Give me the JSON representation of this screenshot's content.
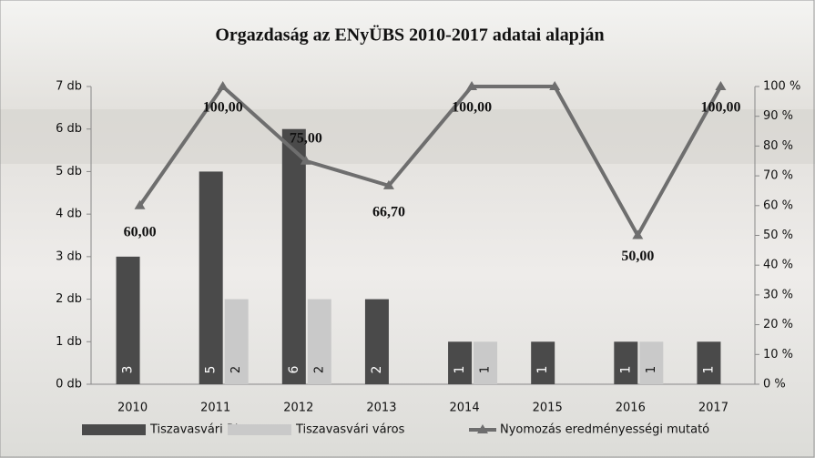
{
  "chart_data": {
    "type": "bar_line",
    "title": "Orgazdaság az ENyÜBS 2010-2017 adatai alapján",
    "categories": [
      "2010",
      "2011",
      "2012",
      "2013",
      "2014",
      "2015",
      "2016",
      "2017"
    ],
    "series": [
      {
        "name": "Tiszavasvári Rk.",
        "color": "#4a4a4a",
        "type": "bar",
        "values": [
          3,
          5,
          6,
          2,
          1,
          1,
          1,
          1
        ]
      },
      {
        "name": "Tiszavasvári város",
        "color": "#c9c9c9",
        "type": "bar",
        "values": [
          null,
          2,
          2,
          null,
          1,
          null,
          1,
          null
        ]
      },
      {
        "name": "Nyomozás eredményességi mutató",
        "color": "#6e6e6e",
        "type": "line",
        "axis": "y2",
        "values": [
          60,
          100,
          75,
          66.7,
          100,
          100,
          50,
          100
        ],
        "value_labels": [
          "60,00",
          "100,00",
          "75,00",
          "66,70",
          "100,00",
          null,
          "50,00",
          "100,00"
        ]
      }
    ],
    "ylim": [
      0,
      7
    ],
    "yticks": [
      {
        "value": 0,
        "label": "0 db"
      },
      {
        "value": 1,
        "label": "1 db"
      },
      {
        "value": 2,
        "label": "2 db"
      },
      {
        "value": 3,
        "label": "3 db"
      },
      {
        "value": 4,
        "label": "4 db"
      },
      {
        "value": 5,
        "label": "5 db"
      },
      {
        "value": 6,
        "label": "6 db"
      },
      {
        "value": 7,
        "label": "7 db"
      }
    ],
    "y2lim": [
      0,
      100
    ],
    "y2ticks": [
      {
        "value": 0,
        "label": "0 %"
      },
      {
        "value": 10,
        "label": "10 %"
      },
      {
        "value": 20,
        "label": "20 %"
      },
      {
        "value": 30,
        "label": "30 %"
      },
      {
        "value": 40,
        "label": "40 %"
      },
      {
        "value": 50,
        "label": "50 %"
      },
      {
        "value": 60,
        "label": "60 %"
      },
      {
        "value": 70,
        "label": "70 %"
      },
      {
        "value": 80,
        "label": "80 %"
      },
      {
        "value": 90,
        "label": "90 %"
      },
      {
        "value": 100,
        "label": "100 %"
      }
    ],
    "legend": "bottom",
    "grid": false
  }
}
